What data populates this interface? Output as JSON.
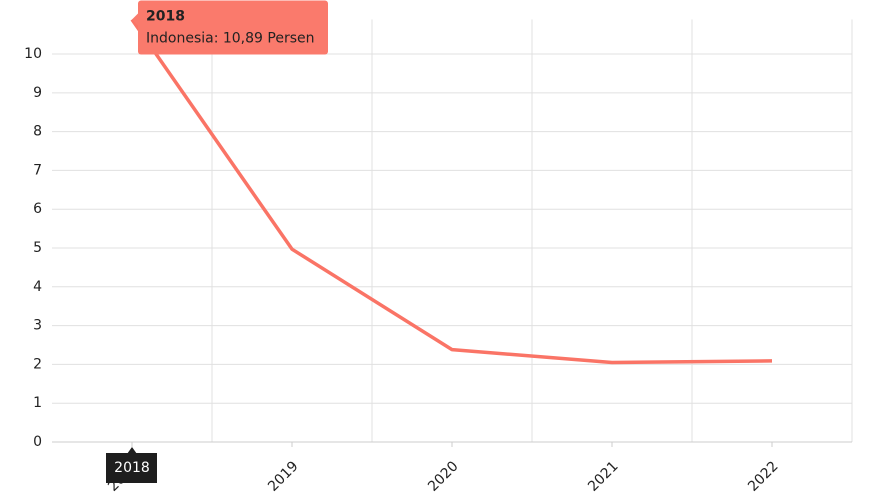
{
  "chart_data": {
    "type": "line",
    "categories": [
      "2018",
      "2019",
      "2020",
      "2021",
      "2022"
    ],
    "series": [
      {
        "name": "Indonesia",
        "color": "#fa7466",
        "values": [
          10.89,
          4.97,
          2.38,
          2.05,
          2.09
        ]
      }
    ],
    "ylim": [
      0,
      10.89
    ],
    "yticks": [
      0,
      1,
      2,
      3,
      4,
      5,
      6,
      7,
      8,
      9,
      10
    ],
    "grid": true,
    "tooltip": {
      "category_index": 0,
      "text": "Indonesia: 10,89 Persen"
    }
  }
}
